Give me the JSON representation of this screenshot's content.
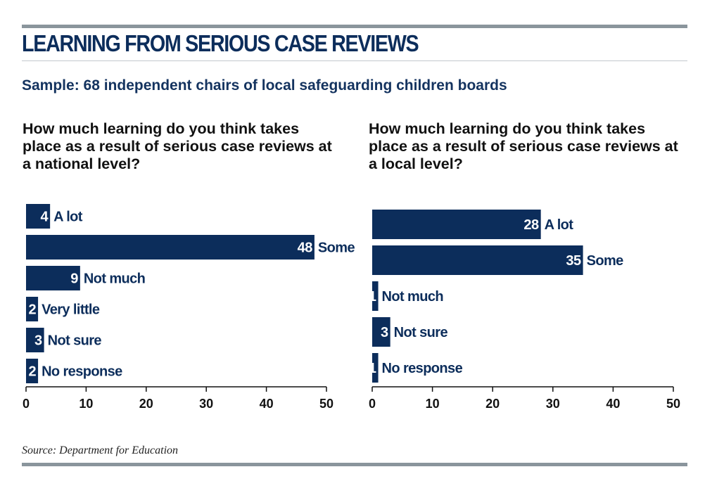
{
  "header": {
    "title": "LEARNING FROM SERIOUS CASE REVIEWS",
    "subtitle": "Sample: 68 independent chairs of local safeguarding children boards"
  },
  "footer": {
    "source": "Source: Department for Education"
  },
  "colors": {
    "bar": "#0c2d5b",
    "value_on_bar": "#ffffff",
    "rule": "#8a959c",
    "text": "#111111"
  },
  "chart_data": [
    {
      "type": "bar",
      "orientation": "horizontal",
      "title": "How much learning do you think takes place as a result of serious case reviews at a national level?",
      "categories": [
        "A lot",
        "Some",
        "Not much",
        "Very little",
        "Not sure",
        "No response"
      ],
      "values": [
        4,
        48,
        9,
        2,
        3,
        2
      ],
      "xlim": [
        0,
        50
      ],
      "xticks": [
        0,
        10,
        20,
        30,
        40,
        50
      ],
      "grid": false,
      "legend": "none"
    },
    {
      "type": "bar",
      "orientation": "horizontal",
      "title": "How much learning do you think takes place as a result of serious case reviews at a local level?",
      "categories": [
        "A lot",
        "Some",
        "Not much",
        "Not sure",
        "No response"
      ],
      "values": [
        28,
        35,
        1,
        3,
        1
      ],
      "xlim": [
        0,
        50
      ],
      "xticks": [
        0,
        10,
        20,
        30,
        40,
        50
      ],
      "grid": false,
      "legend": "none"
    }
  ]
}
